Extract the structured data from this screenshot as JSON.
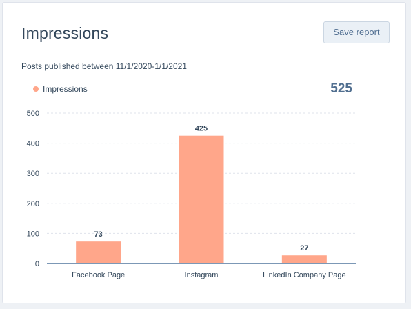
{
  "header": {
    "title": "Impressions",
    "save_label": "Save report"
  },
  "subtitle": "Posts published between 11/1/2020-1/1/2021",
  "legend": {
    "label": "Impressions"
  },
  "total": "525",
  "colors": {
    "bar": "#ffa68a",
    "grid": "#dfe3eb",
    "axis": "#7c98b6"
  },
  "chart_data": {
    "type": "bar",
    "title": "",
    "xlabel": "",
    "ylabel": "",
    "categories": [
      "Facebook Page",
      "Instagram",
      "LinkedIn Company Page"
    ],
    "series": [
      {
        "name": "Impressions",
        "values": [
          73,
          425,
          27
        ]
      }
    ],
    "ylim": [
      0,
      500
    ],
    "yticks": [
      0,
      100,
      200,
      300,
      400,
      500
    ],
    "grid": true,
    "legend_position": "top-left",
    "data_labels": [
      "73",
      "425",
      "27"
    ]
  }
}
